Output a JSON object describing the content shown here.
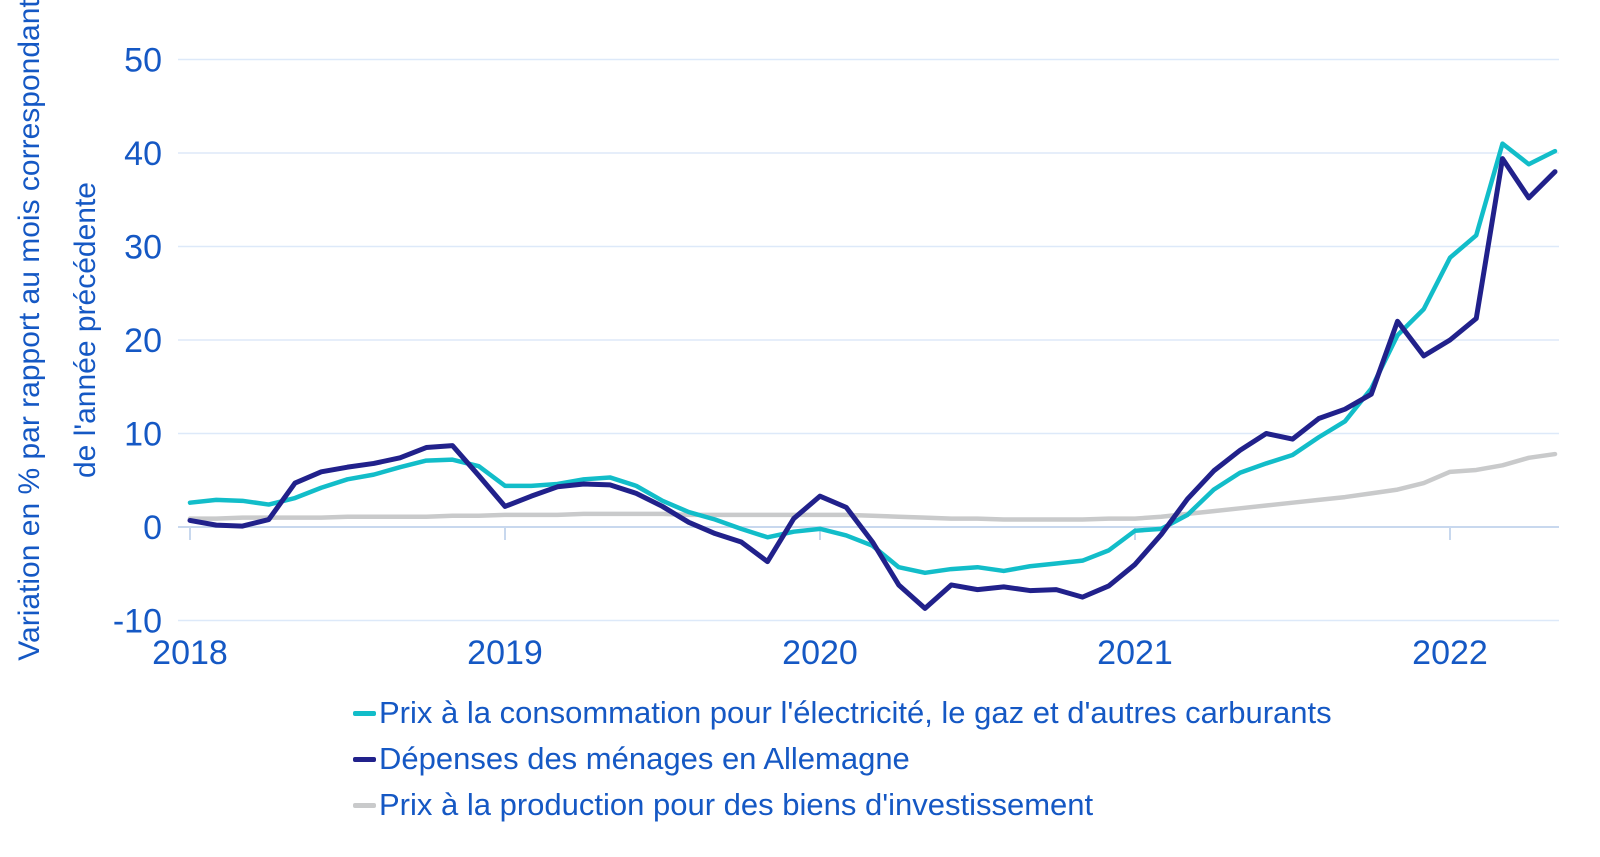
{
  "page": {
    "background": "#ffffff",
    "language": "fr"
  },
  "chart_data": {
    "type": "line",
    "title": "",
    "ylabel": "Variation en % par rapport au mois correspondant de l'année précédente",
    "ylabel_lines": [
      "Variation en % par rapport au mois correspondant",
      "de l'année précédente"
    ],
    "x_unit": "month",
    "x": [
      "2018-01",
      "2018-02",
      "2018-03",
      "2018-04",
      "2018-05",
      "2018-06",
      "2018-07",
      "2018-08",
      "2018-09",
      "2018-10",
      "2018-11",
      "2018-12",
      "2019-01",
      "2019-02",
      "2019-03",
      "2019-04",
      "2019-05",
      "2019-06",
      "2019-07",
      "2019-08",
      "2019-09",
      "2019-10",
      "2019-11",
      "2019-12",
      "2020-01",
      "2020-02",
      "2020-03",
      "2020-04",
      "2020-05",
      "2020-06",
      "2020-07",
      "2020-08",
      "2020-09",
      "2020-10",
      "2020-11",
      "2020-12",
      "2021-01",
      "2021-02",
      "2021-03",
      "2021-04",
      "2021-05",
      "2021-06",
      "2021-07",
      "2021-08",
      "2021-09",
      "2021-10",
      "2021-11",
      "2021-12",
      "2022-01",
      "2022-02",
      "2022-03",
      "2022-04",
      "2022-05"
    ],
    "x_tick_labels": [
      "2018",
      "2019",
      "2020",
      "2021",
      "2022"
    ],
    "ylim": [
      -10,
      50
    ],
    "y_ticks": [
      50,
      40,
      30,
      20,
      10,
      0,
      -10
    ],
    "grid": "horizontal",
    "legend_position": "bottom-left",
    "text_color": "#1558C4",
    "gridline_color": "#DDE9F9",
    "axis_line_color": "#C8D8EE",
    "series": [
      {
        "key": "consumer-prices",
        "name": "Prix à la consommation pour l'électricité, le gaz et d'autres carburants",
        "color": "#12BDC9",
        "values": [
          2.6,
          2.9,
          2.8,
          2.4,
          3.1,
          4.2,
          5.1,
          5.6,
          6.4,
          7.1,
          7.2,
          6.5,
          4.4,
          4.4,
          4.6,
          5.1,
          5.3,
          4.4,
          2.8,
          1.6,
          0.8,
          -0.2,
          -1.1,
          -0.5,
          -0.2,
          -0.9,
          -2.0,
          -4.3,
          -4.9,
          -4.5,
          -4.3,
          -4.7,
          -4.2,
          -3.9,
          -3.6,
          -2.5,
          -0.4,
          -0.2,
          1.3,
          4.0,
          5.8,
          6.8,
          7.7,
          9.6,
          11.3,
          14.8,
          20.5,
          23.3,
          28.8,
          31.2,
          41.0,
          38.8,
          40.2
        ]
      },
      {
        "key": "household-expenses",
        "name": "Dépenses des ménages en Allemagne",
        "color": "#21218B",
        "values": [
          0.7,
          0.2,
          0.1,
          0.8,
          4.7,
          5.9,
          6.4,
          6.8,
          7.4,
          8.5,
          8.7,
          5.5,
          2.2,
          3.3,
          4.3,
          4.6,
          4.5,
          3.6,
          2.2,
          0.5,
          -0.7,
          -1.6,
          -3.7,
          0.9,
          3.3,
          2.1,
          -1.6,
          -6.2,
          -8.7,
          -6.2,
          -6.7,
          -6.4,
          -6.8,
          -6.7,
          -7.5,
          -6.3,
          -4.0,
          -0.8,
          3.0,
          6.0,
          8.2,
          10.0,
          9.4,
          11.6,
          12.6,
          14.2,
          22.0,
          18.3,
          20.0,
          22.3,
          39.4,
          35.2,
          38.0
        ]
      },
      {
        "key": "producer-prices",
        "name": "Prix à la production pour des biens d'investissement",
        "color": "#C9CACB",
        "values": [
          0.9,
          0.9,
          1.0,
          1.0,
          1.0,
          1.0,
          1.1,
          1.1,
          1.1,
          1.1,
          1.2,
          1.2,
          1.3,
          1.3,
          1.3,
          1.4,
          1.4,
          1.4,
          1.4,
          1.3,
          1.3,
          1.3,
          1.3,
          1.3,
          1.3,
          1.3,
          1.2,
          1.1,
          1.0,
          0.9,
          0.9,
          0.8,
          0.8,
          0.8,
          0.8,
          0.9,
          0.9,
          1.1,
          1.4,
          1.7,
          2.0,
          2.3,
          2.6,
          2.9,
          3.2,
          3.6,
          4.0,
          4.7,
          5.9,
          6.1,
          6.6,
          7.4,
          7.8
        ]
      }
    ]
  }
}
